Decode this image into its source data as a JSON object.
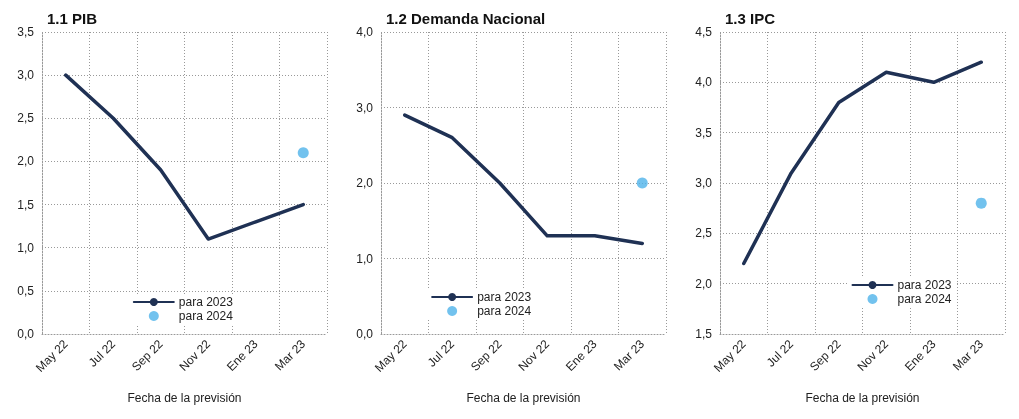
{
  "chart_data": [
    {
      "type": "line",
      "title": "1.1 PIB",
      "xlabel": "Fecha de la previsión",
      "categories": [
        "May 22",
        "Jul 22",
        "Sep 22",
        "Nov 22",
        "Ene 23",
        "Mar 23"
      ],
      "series": [
        {
          "name": "para 2023",
          "color": "#1f3154",
          "values": [
            3.0,
            2.5,
            1.9,
            1.1,
            1.3,
            1.5
          ],
          "marker": "none"
        },
        {
          "name": "para 2024",
          "type": "scatter",
          "color": "#4fb3ea",
          "values": [
            null,
            null,
            null,
            null,
            null,
            2.1
          ],
          "marker": "circle"
        }
      ],
      "ylim": [
        0,
        3.5
      ],
      "yticks": [
        {
          "value": 0,
          "label": "0,0"
        },
        {
          "value": 0.5,
          "label": "0,5"
        },
        {
          "value": 1,
          "label": "1,0"
        },
        {
          "value": 1.5,
          "label": "1,5"
        },
        {
          "value": 2,
          "label": "2,0"
        },
        {
          "value": 2.5,
          "label": "2,5"
        },
        {
          "value": 3,
          "label": "3,0"
        },
        {
          "value": 3.5,
          "label": "3,5"
        }
      ],
      "grid": true,
      "legend": "bottom"
    },
    {
      "type": "line",
      "title": "1.2 Demanda Nacional",
      "xlabel": "Fecha de la previsión",
      "categories": [
        "May 22",
        "Jul 22",
        "Sep 22",
        "Nov 22",
        "Ene 23",
        "Mar 23"
      ],
      "series": [
        {
          "name": "para 2023",
          "color": "#1f3154",
          "values": [
            2.9,
            2.6,
            2.0,
            1.3,
            1.3,
            1.2
          ],
          "marker": "none"
        },
        {
          "name": "para 2024",
          "type": "scatter",
          "color": "#4fb3ea",
          "values": [
            null,
            null,
            null,
            null,
            null,
            2.0
          ],
          "marker": "circle"
        }
      ],
      "ylim": [
        0,
        4
      ],
      "yticks": [
        {
          "value": 0,
          "label": "0,0"
        },
        {
          "value": 1,
          "label": "1,0"
        },
        {
          "value": 2,
          "label": "2,0"
        },
        {
          "value": 3,
          "label": "3,0"
        },
        {
          "value": 4,
          "label": "4,0"
        }
      ],
      "grid": true,
      "legend": "bottom left"
    },
    {
      "type": "line",
      "title": "1.3 IPC",
      "xlabel": "Fecha de la previsión",
      "categories": [
        "May 22",
        "Jul 22",
        "Sep 22",
        "Nov 22",
        "Ene 23",
        "Mar 23"
      ],
      "series": [
        {
          "name": "para 2023",
          "color": "#1f3154",
          "values": [
            2.2,
            3.1,
            3.8,
            4.1,
            4.0,
            4.2
          ],
          "marker": "none"
        },
        {
          "name": "para 2024",
          "type": "scatter",
          "color": "#4fb3ea",
          "values": [
            null,
            null,
            null,
            null,
            null,
            2.8
          ],
          "marker": "circle"
        }
      ],
      "ylim": [
        1.5,
        4.5
      ],
      "yticks": [
        {
          "value": 1.5,
          "label": "1,5"
        },
        {
          "value": 2,
          "label": "2,0"
        },
        {
          "value": 2.5,
          "label": "2,5"
        },
        {
          "value": 3,
          "label": "3,0"
        },
        {
          "value": 3.5,
          "label": "3,5"
        },
        {
          "value": 4,
          "label": "4,0"
        },
        {
          "value": 4.5,
          "label": "4,5"
        }
      ],
      "grid": true,
      "legend": "bottom right"
    }
  ]
}
